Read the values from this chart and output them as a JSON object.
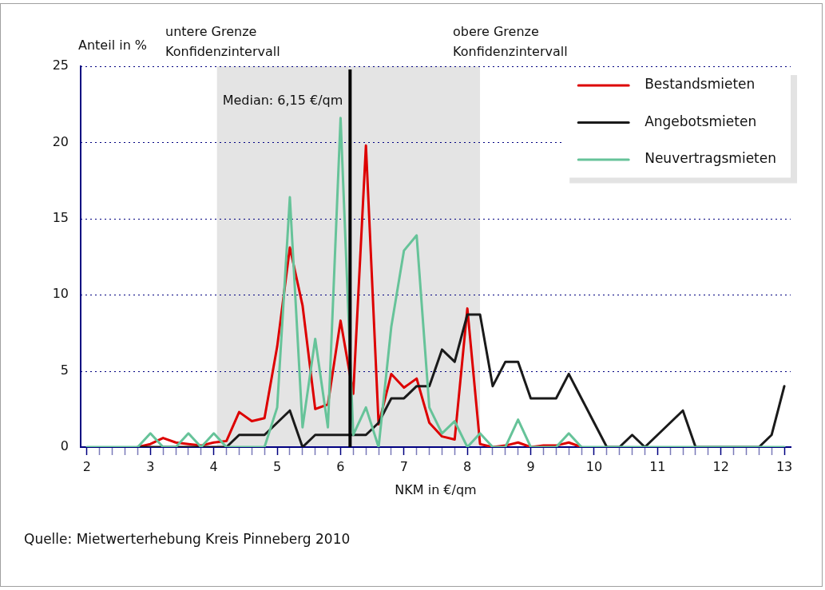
{
  "chart_data": {
    "type": "line",
    "xlabel": "NKM in €/qm",
    "ylabel": "Anteil in %",
    "x": [
      2,
      2.2,
      2.4,
      2.6,
      2.8,
      3,
      3.2,
      3.4,
      3.6,
      3.8,
      4,
      4.2,
      4.4,
      4.6,
      4.8,
      5,
      5.2,
      5.4,
      5.6,
      5.8,
      6,
      6.2,
      6.4,
      6.6,
      6.8,
      7,
      7.2,
      7.4,
      7.6,
      7.8,
      8,
      8.2,
      8.4,
      8.6,
      8.8,
      9,
      9.2,
      9.4,
      9.6,
      9.8,
      10,
      10.2,
      10.4,
      10.6,
      10.8,
      11,
      11.2,
      11.4,
      11.6,
      11.8,
      12,
      12.2,
      12.4,
      12.6,
      12.8,
      13
    ],
    "series": [
      {
        "name": "Bestandsmieten",
        "color": "#dd0000",
        "values": [
          null,
          null,
          null,
          null,
          0,
          0.2,
          0.6,
          0.3,
          0.2,
          0.1,
          0.3,
          0.4,
          2.3,
          1.7,
          1.9,
          6.6,
          13.1,
          9.3,
          2.5,
          2.8,
          8.3,
          3.5,
          19.8,
          1.5,
          4.8,
          3.9,
          4.5,
          1.6,
          0.7,
          0.5,
          9.1,
          0.2,
          0,
          0.1,
          0.3,
          0,
          0.1,
          0.1,
          0.3,
          0,
          null,
          null,
          null,
          null,
          null,
          null,
          null,
          null,
          null,
          null,
          null,
          null,
          null,
          null,
          null,
          null
        ]
      },
      {
        "name": "Angebotsmieten",
        "color": "#1a1a1a",
        "values": [
          null,
          null,
          null,
          null,
          0,
          0,
          null,
          null,
          0,
          null,
          0,
          0,
          0.8,
          0.8,
          0.8,
          1.6,
          2.4,
          0,
          0.8,
          0.8,
          0.8,
          0.8,
          0.8,
          1.6,
          3.2,
          3.2,
          4.0,
          4.0,
          6.4,
          5.6,
          8.7,
          8.7,
          4.0,
          5.6,
          5.6,
          3.2,
          3.2,
          3.2,
          4.8,
          3.2,
          1.6,
          0,
          0,
          0.8,
          0,
          0.8,
          1.6,
          2.4,
          0,
          null,
          null,
          null,
          null,
          0,
          0.8,
          4.0
        ]
      },
      {
        "name": "Neuvertragsmieten",
        "color": "#66c399",
        "values": [
          0,
          0,
          0,
          0,
          0,
          0.9,
          0,
          0,
          0.9,
          0,
          0.9,
          0,
          0,
          0,
          0,
          2.6,
          16.4,
          1.3,
          7.1,
          1.3,
          21.6,
          0.8,
          2.6,
          0,
          7.9,
          12.9,
          13.9,
          2.6,
          0.9,
          1.7,
          0,
          0.9,
          0,
          0,
          1.8,
          0,
          0,
          0,
          0.9,
          0,
          0,
          0,
          0,
          0,
          0,
          0,
          0,
          0,
          0,
          0,
          0,
          0,
          0,
          0,
          0,
          0
        ]
      }
    ],
    "xlim": [
      1.9,
      13.1
    ],
    "xticks": [
      2,
      {
        "value": 2.2,
        "label": null
      },
      {
        "value": 2.4,
        "label": null
      },
      {
        "value": 2.6,
        "label": null
      },
      {
        "value": 2.8,
        "label": null
      },
      3,
      {
        "value": 3.2,
        "label": null
      },
      {
        "value": 3.4,
        "label": null
      },
      {
        "value": 3.6,
        "label": null
      },
      {
        "value": 3.8,
        "label": null
      },
      4,
      {
        "value": 4.2,
        "label": null
      },
      {
        "value": 4.4,
        "label": null
      },
      {
        "value": 4.6,
        "label": null
      },
      {
        "value": 4.8,
        "label": null
      },
      5,
      {
        "value": 5.2,
        "label": null
      },
      {
        "value": 5.4,
        "label": null
      },
      {
        "value": 5.6,
        "label": null
      },
      {
        "value": 5.8,
        "label": null
      },
      6,
      {
        "value": 6.2,
        "label": null
      },
      {
        "value": 6.4,
        "label": null
      },
      {
        "value": 6.6,
        "label": null
      },
      {
        "value": 6.8,
        "label": null
      },
      7,
      {
        "value": 7.2,
        "label": null
      },
      {
        "value": 7.4,
        "label": null
      },
      {
        "value": 7.6,
        "label": null
      },
      {
        "value": 7.8,
        "label": null
      },
      8,
      {
        "value": 8.2,
        "label": null
      },
      {
        "value": 8.4,
        "label": null
      },
      {
        "value": 8.6,
        "label": null
      },
      {
        "value": 8.8,
        "label": null
      },
      9,
      {
        "value": 9.2,
        "label": null
      },
      {
        "value": 9.4,
        "label": null
      },
      {
        "value": 9.6,
        "label": null
      },
      {
        "value": 9.8,
        "label": null
      },
      10,
      {
        "value": 10.2,
        "label": null
      },
      {
        "value": 10.4,
        "label": null
      },
      {
        "value": 10.6,
        "label": null
      },
      {
        "value": 10.8,
        "label": null
      },
      11,
      {
        "value": 11.2,
        "label": null
      },
      {
        "value": 11.4,
        "label": null
      },
      {
        "value": 11.6,
        "label": null
      },
      {
        "value": 11.8,
        "label": null
      },
      12,
      {
        "value": 12.2,
        "label": null
      },
      {
        "value": 12.4,
        "label": null
      },
      {
        "value": 12.6,
        "label": null
      },
      {
        "value": 12.8,
        "label": null
      },
      13
    ],
    "ylim": [
      0,
      25
    ],
    "yticks": [
      0,
      5,
      10,
      15,
      20,
      25
    ],
    "bands": [
      {
        "axis": "x",
        "from": 4.05,
        "to": 8.2,
        "color": "#e4e4e4"
      }
    ],
    "ref_lines": [
      {
        "axis": "x",
        "value": 6.15,
        "label": "Median: 6,15 €/qm",
        "color": "#000000"
      }
    ],
    "annotations": [
      "untere Grenze\nKonfidenzintervall",
      "obere Grenze\nKonfidenzintervall",
      "Quelle: Mietwerterhebung Kreis Pinneberg 2010"
    ],
    "grid": "y",
    "legend": "top right",
    "marker": "none",
    "line_style": "solid"
  }
}
